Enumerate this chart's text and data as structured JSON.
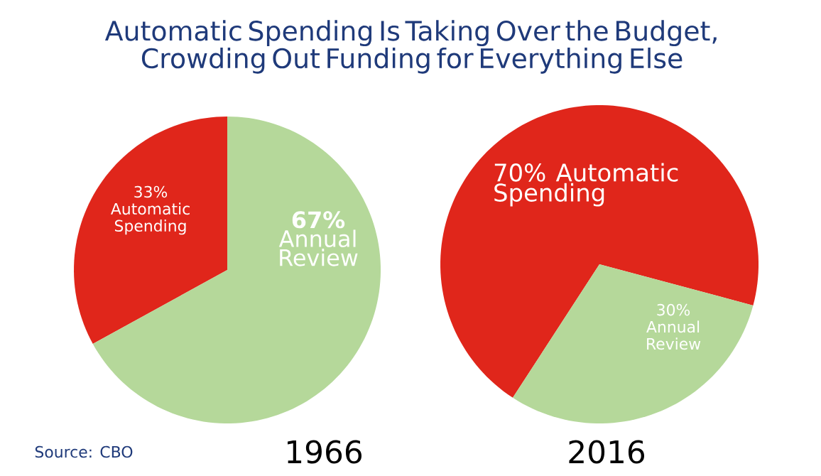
{
  "chart_data": [
    {
      "type": "pie",
      "title": "Automatic Spending Is Taking Over the Budget, Crowding Out Funding for Everything Else",
      "xlabel": "1966",
      "categories": [
        "Automatic Spending",
        "Annual Review"
      ],
      "values": [
        33,
        67
      ],
      "value_labels": [
        "33%",
        "67%"
      ],
      "colors": [
        "#e0261b",
        "#b5d89a"
      ],
      "annotations": [
        "Source: CBO"
      ]
    },
    {
      "type": "pie",
      "xlabel": "2016",
      "categories": [
        "Automatic Spending",
        "Annual Review"
      ],
      "values": [
        70,
        30
      ],
      "value_labels": [
        "70%",
        "30%"
      ],
      "colors": [
        "#e0261b",
        "#b5d89a"
      ]
    }
  ]
}
